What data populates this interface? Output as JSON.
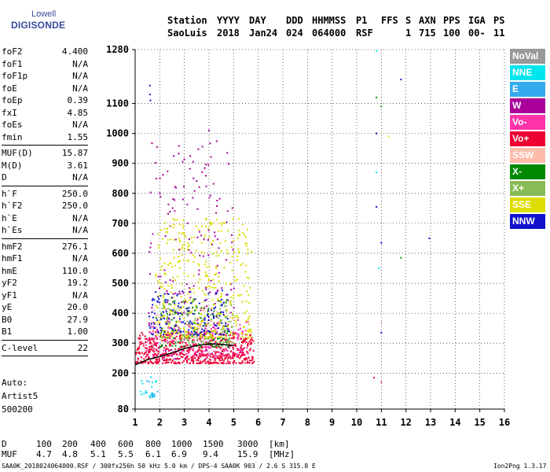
{
  "logo": {
    "line1": "Lowell",
    "line2": "DIGISONDE"
  },
  "header": {
    "labels": [
      "Station",
      "YYYY",
      "DAY",
      "DDD",
      "HHMMSS",
      "P1",
      "FFS",
      "S",
      "AXN",
      "PPS",
      "IGA",
      "PS"
    ],
    "values": [
      "SaoLuis",
      "2018",
      "Jan24",
      "024",
      "064000",
      "RSF",
      "",
      "1",
      "715",
      "100",
      "00-",
      "11"
    ]
  },
  "params": {
    "group1": [
      {
        "name": "foF2",
        "value": "4.400"
      },
      {
        "name": "foF1",
        "value": "N/A"
      },
      {
        "name": "foF1p",
        "value": "N/A"
      },
      {
        "name": "foE",
        "value": "N/A"
      },
      {
        "name": "foEp",
        "value": "0.39"
      },
      {
        "name": "fxI",
        "value": "4.85"
      },
      {
        "name": "foEs",
        "value": "N/A"
      },
      {
        "name": "fmin",
        "value": "1.55"
      }
    ],
    "group2": [
      {
        "name": "MUF(D)",
        "value": "15.87"
      },
      {
        "name": "M(D)",
        "value": "3.61"
      },
      {
        "name": "D",
        "value": "N/A"
      }
    ],
    "group3": [
      {
        "name": "h`F",
        "value": "250.0"
      },
      {
        "name": "h`F2",
        "value": "250.0"
      },
      {
        "name": "h`E",
        "value": "N/A"
      },
      {
        "name": "h`Es",
        "value": "N/A"
      }
    ],
    "group4": [
      {
        "name": "hmF2",
        "value": "276.1"
      },
      {
        "name": "hmF1",
        "value": "N/A"
      },
      {
        "name": "hmE",
        "value": "110.0"
      },
      {
        "name": "yF2",
        "value": "19.2"
      },
      {
        "name": "yF1",
        "value": "N/A"
      },
      {
        "name": "yE",
        "value": "20.0"
      },
      {
        "name": "B0",
        "value": "27.9"
      },
      {
        "name": "B1",
        "value": "1.00"
      }
    ],
    "group5": [
      {
        "name": "C-level",
        "value": "22"
      }
    ]
  },
  "info": {
    "line1": "Auto:",
    "line2": "Artist5",
    "line3": "500200"
  },
  "legend": [
    {
      "label": "NoVal",
      "color": "#999999",
      "text_color": "#ffffff"
    },
    {
      "label": "NNE",
      "color": "#00e5ee",
      "text_color": "#ffffff"
    },
    {
      "label": "E",
      "color": "#33aaee",
      "text_color": "#ffffff"
    },
    {
      "label": "W",
      "color": "#aa0099",
      "text_color": "#ffffff"
    },
    {
      "label": "Vo-",
      "color": "#ff33aa",
      "text_color": "#ffffff"
    },
    {
      "label": "Vo+",
      "color": "#ee0033",
      "text_color": "#ffffff"
    },
    {
      "label": "SSW",
      "color": "#ffbbaa",
      "text_color": "#ffffff"
    },
    {
      "label": "X-",
      "color": "#008800",
      "text_color": "#ffffff"
    },
    {
      "label": "X+",
      "color": "#88bb55",
      "text_color": "#ffffff"
    },
    {
      "label": "SSE",
      "color": "#dddd00",
      "text_color": "#ffffff"
    },
    {
      "label": "NNW",
      "color": "#1111cc",
      "text_color": "#ffffff"
    }
  ],
  "muf_table": {
    "d_label": "D",
    "muf_label": "MUF",
    "d_values": [
      "100",
      "200",
      "400",
      "600",
      "800",
      "1000",
      "1500",
      "3000"
    ],
    "d_unit": "[km]",
    "muf_values": [
      "4.7",
      "4.8",
      "5.1",
      "5.5",
      "6.1",
      "6.9",
      "9.4",
      "15.9"
    ],
    "muf_unit": "[MHz]"
  },
  "footer": {
    "left": "SAA0K_2018024064000.RSF / 300fx256h 50 kHz 5.0 km / DPS-4 SAA0K 903 / 2.6 S 315.8 E",
    "right": "Ion2Png 1.3.17"
  },
  "chart_data": {
    "type": "scatter",
    "xlim": [
      1,
      16
    ],
    "ylim": [
      80,
      1280
    ],
    "x_ticks": [
      1,
      2,
      3,
      4,
      5,
      6,
      7,
      8,
      9,
      10,
      11,
      12,
      13,
      14,
      15,
      16
    ],
    "y_ticks": [
      80,
      200,
      300,
      400,
      500,
      600,
      700,
      800,
      900,
      1000,
      1100,
      1280
    ],
    "grid": true,
    "legend_position": "right",
    "trace": {
      "x": [
        1.0,
        1.5,
        2.0,
        2.5,
        3.0,
        3.5,
        4.0,
        4.5,
        5.0
      ],
      "y": [
        228,
        245,
        255,
        268,
        282,
        292,
        298,
        296,
        292
      ]
    },
    "clusters": [
      {
        "cls": "NNE",
        "x": [
          1.1,
          1.9
        ],
        "y": [
          120,
          190
        ],
        "n": 18
      },
      {
        "cls": "E",
        "x": [
          1.1,
          1.9
        ],
        "y": [
          120,
          190
        ],
        "n": 10
      },
      {
        "cls": "W",
        "x": [
          1.5,
          5.0
        ],
        "y": [
          250,
          980
        ],
        "n": 220
      },
      {
        "cls": "Vo-",
        "x": [
          1.4,
          5.6
        ],
        "y": [
          260,
          380
        ],
        "n": 250
      },
      {
        "cls": "Vo+",
        "x": [
          1.0,
          5.8
        ],
        "y": [
          235,
          340
        ],
        "n": 550
      },
      {
        "cls": "SSW",
        "x": [
          1.5,
          5.0
        ],
        "y": [
          300,
          420
        ],
        "n": 60
      },
      {
        "cls": "X-",
        "x": [
          1.8,
          4.8
        ],
        "y": [
          290,
          450
        ],
        "n": 120
      },
      {
        "cls": "X+",
        "x": [
          2.0,
          5.0
        ],
        "y": [
          300,
          450
        ],
        "n": 120
      },
      {
        "cls": "SSE",
        "x": [
          1.8,
          5.7
        ],
        "y": [
          320,
          720
        ],
        "n": 420
      },
      {
        "cls": "NNW",
        "x": [
          1.5,
          4.8
        ],
        "y": [
          330,
          480
        ],
        "n": 150
      }
    ],
    "outliers": [
      {
        "x": 1.6,
        "y": 1130,
        "cls": "NNW"
      },
      {
        "x": 1.6,
        "y": 1160,
        "cls": "NNW"
      },
      {
        "x": 1.62,
        "y": 1110,
        "cls": "NNW"
      },
      {
        "x": 10.8,
        "y": 1275,
        "cls": "NNE"
      },
      {
        "x": 11.8,
        "y": 1180,
        "cls": "NNW"
      },
      {
        "x": 10.8,
        "y": 1120,
        "cls": "X-"
      },
      {
        "x": 11.0,
        "y": 1090,
        "cls": "X-"
      },
      {
        "x": 10.8,
        "y": 1000,
        "cls": "NNW"
      },
      {
        "x": 11.3,
        "y": 990,
        "cls": "SSE"
      },
      {
        "x": 10.8,
        "y": 870,
        "cls": "NNE"
      },
      {
        "x": 10.8,
        "y": 755,
        "cls": "NNW"
      },
      {
        "x": 11.0,
        "y": 635,
        "cls": "NNW"
      },
      {
        "x": 12.95,
        "y": 650,
        "cls": "NNW"
      },
      {
        "x": 11.8,
        "y": 585,
        "cls": "X-"
      },
      {
        "x": 10.9,
        "y": 550,
        "cls": "NNE"
      },
      {
        "x": 11.0,
        "y": 370,
        "cls": "SSW"
      },
      {
        "x": 11.0,
        "y": 335,
        "cls": "NNW"
      },
      {
        "x": 10.7,
        "y": 185,
        "cls": "Vo+"
      },
      {
        "x": 11.0,
        "y": 170,
        "cls": "Vo-"
      },
      {
        "x": 4.0,
        "y": 1010,
        "cls": "W"
      }
    ]
  }
}
